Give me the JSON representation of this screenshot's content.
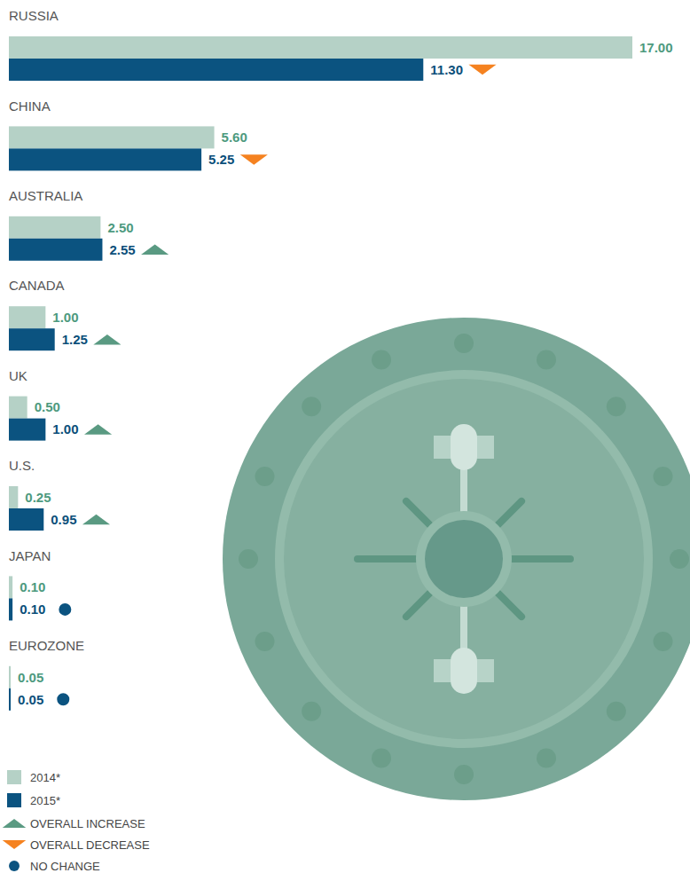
{
  "chart_data": {
    "type": "bar",
    "orientation": "horizontal",
    "data_labels": true,
    "tick_labels": false,
    "categories": [
      "RUSSIA",
      "CHINA",
      "AUSTRALIA",
      "CANADA",
      "UK",
      "U.S.",
      "JAPAN",
      "EUROZONE"
    ],
    "xlim": [
      0,
      17
    ],
    "series": [
      {
        "name": "2014*",
        "color": "#b5d1c6",
        "values": [
          17,
          5.6,
          2.5,
          1,
          0.5,
          0.25,
          0.1,
          0.05
        ],
        "value_labels": [
          "17.00",
          "5.60",
          "2.50",
          "1.00",
          "0.50",
          "0.25",
          "0.10",
          "0.05"
        ]
      },
      {
        "name": "2015*",
        "color": "#0b5380",
        "values": [
          11.3,
          5.25,
          2.55,
          1.25,
          1,
          0.95,
          0.1,
          0.05
        ],
        "value_labels": [
          "11.30",
          "5.25",
          "2.55",
          "1.25",
          "1.00",
          "0.95",
          "0.10",
          "0.05"
        ]
      }
    ],
    "change_legend": [
      {
        "name": "OVERALL INCREASE",
        "marker": "triangle-up",
        "color": "#5a9a82"
      },
      {
        "name": "OVERALL DECREASE",
        "marker": "triangle-down",
        "color": "#f58220"
      },
      {
        "name": "NO CHANGE",
        "marker": "circle",
        "color": "#0b5380"
      }
    ],
    "changes": [
      1,
      1,
      0,
      0,
      0,
      0,
      2,
      2
    ]
  }
}
